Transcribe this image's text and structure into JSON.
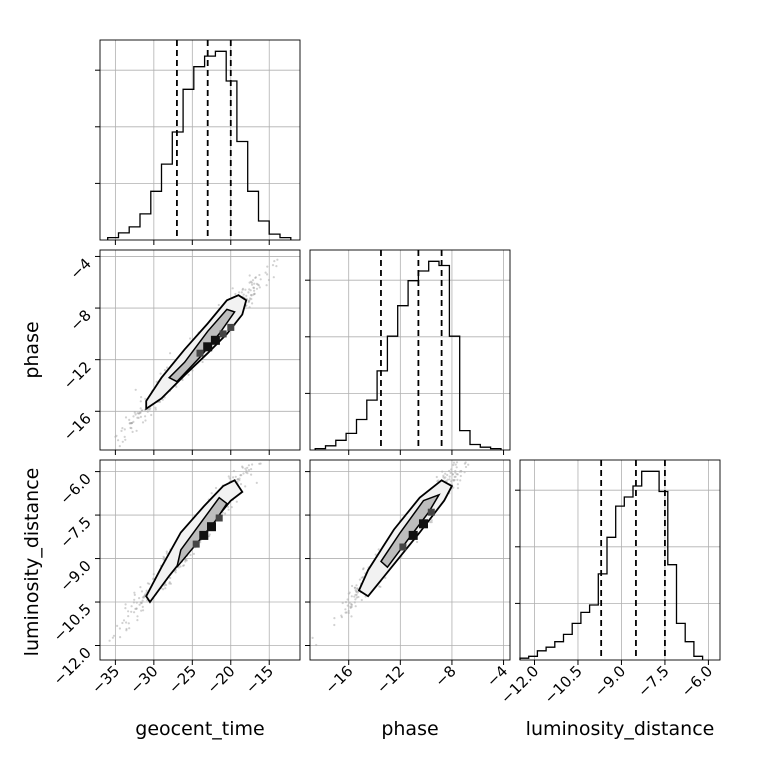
{
  "chart_data": {
    "type": "corner",
    "variables": [
      "geocent_time",
      "phase",
      "luminosity_distance"
    ],
    "axes": {
      "geocent_time": {
        "label": "geocent_time",
        "range": [
          -37,
          -11
        ],
        "ticks": [
          -35,
          -30,
          -25,
          -20,
          -15
        ],
        "tick_labels": [
          "−35",
          "−30",
          "−25",
          "−20",
          "−15"
        ]
      },
      "phase": {
        "label": "phase",
        "range": [
          -19,
          -3.5
        ],
        "ticks": [
          -16,
          -12,
          -8,
          -4
        ],
        "tick_labels": [
          "−16",
          "−12",
          "−8",
          "−4"
        ]
      },
      "luminosity_distance": {
        "label": "luminosity_distance",
        "range": [
          -12.5,
          -5.6
        ],
        "ticks": [
          -12.0,
          -10.5,
          -9.0,
          -7.5,
          -6.0
        ],
        "tick_labels": [
          "−12.0",
          "−10.5",
          "−9.0",
          "−7.5",
          "−6.0"
        ]
      }
    },
    "histograms": [
      {
        "variable": "geocent_time",
        "bin_edges": [
          -36,
          -34.6,
          -33.2,
          -31.8,
          -30.4,
          -29,
          -27.6,
          -26.2,
          -24.8,
          -23.4,
          -22,
          -20.6,
          -19.2,
          -17.8,
          -16.4,
          -15,
          -13.6,
          -12.2
        ],
        "counts": [
          2,
          6,
          11,
          22,
          41,
          64,
          91,
          127,
          146,
          155,
          159,
          134,
          83,
          41,
          16,
          5,
          2
        ],
        "quantiles": [
          -27.0,
          -23.0,
          -20.0
        ]
      },
      {
        "variable": "phase",
        "bin_edges": [
          -18.6,
          -17.8,
          -17.0,
          -16.2,
          -15.4,
          -14.6,
          -13.8,
          -13.0,
          -12.2,
          -11.4,
          -10.6,
          -9.8,
          -9.0,
          -8.2,
          -7.4,
          -6.6,
          -5.8,
          -5.0,
          -4.2
        ],
        "counts": [
          1,
          3,
          7,
          12,
          22,
          36,
          57,
          82,
          104,
          122,
          129,
          136,
          133,
          82,
          14,
          4,
          2,
          1
        ],
        "quantiles": [
          -13.5,
          -10.6,
          -8.8
        ]
      },
      {
        "variable": "luminosity_distance",
        "bin_edges": [
          -12.5,
          -12.2,
          -11.9,
          -11.6,
          -11.3,
          -11.0,
          -10.7,
          -10.4,
          -10.1,
          -9.8,
          -9.5,
          -9.2,
          -8.9,
          -8.6,
          -8.3,
          -8.0,
          -7.7,
          -7.4,
          -7.1,
          -6.8,
          -6.5,
          -6.2
        ],
        "counts": [
          1,
          2,
          5,
          7,
          10,
          14,
          20,
          26,
          30,
          47,
          67,
          84,
          89,
          95,
          103,
          103,
          92,
          52,
          20,
          10,
          2
        ],
        "quantiles": [
          -9.7,
          -8.5,
          -7.5
        ]
      }
    ],
    "contours": [
      {
        "x": "geocent_time",
        "y": "phase",
        "outer_contour": [
          [
            -31.0,
            -15.8
          ],
          [
            -29.0,
            -15.0
          ],
          [
            -26.0,
            -13.2
          ],
          [
            -23.0,
            -11.5
          ],
          [
            -20.5,
            -10.0
          ],
          [
            -18.5,
            -8.5
          ],
          [
            -18.0,
            -7.4
          ],
          [
            -19.0,
            -7.0
          ],
          [
            -20.5,
            -7.4
          ],
          [
            -23.0,
            -9.2
          ],
          [
            -26.0,
            -11.2
          ],
          [
            -29.0,
            -13.4
          ],
          [
            -31.0,
            -15.2
          ]
        ],
        "inner_contour": [
          [
            -27.0,
            -13.7
          ],
          [
            -24.0,
            -11.8
          ],
          [
            -21.5,
            -10.0
          ],
          [
            -19.5,
            -8.3
          ],
          [
            -20.5,
            -8.1
          ],
          [
            -23.0,
            -9.8
          ],
          [
            -26.0,
            -12.2
          ],
          [
            -28.0,
            -13.4
          ]
        ],
        "density_peaks": [
          [
            -23.0,
            -11.0
          ],
          [
            -22.0,
            -10.5
          ],
          [
            -21.0,
            -10.0
          ],
          [
            -24.0,
            -11.5
          ],
          [
            -20.0,
            -9.5
          ]
        ]
      },
      {
        "x": "geocent_time",
        "y": "luminosity_distance",
        "outer_contour": [
          [
            -30.5,
            -10.5
          ],
          [
            -28.0,
            -9.6
          ],
          [
            -25.0,
            -8.6
          ],
          [
            -22.5,
            -7.8
          ],
          [
            -20.0,
            -7.0
          ],
          [
            -18.5,
            -6.7
          ],
          [
            -19.5,
            -6.3
          ],
          [
            -21.0,
            -6.5
          ],
          [
            -23.5,
            -7.2
          ],
          [
            -26.5,
            -8.1
          ],
          [
            -29.0,
            -9.3
          ],
          [
            -31.0,
            -10.3
          ]
        ],
        "inner_contour": [
          [
            -27.0,
            -9.3
          ],
          [
            -24.5,
            -8.5
          ],
          [
            -22.0,
            -7.7
          ],
          [
            -20.5,
            -7.1
          ],
          [
            -21.5,
            -6.9
          ],
          [
            -24.0,
            -7.8
          ],
          [
            -26.5,
            -8.7
          ]
        ],
        "density_peaks": [
          [
            -23.5,
            -8.2
          ],
          [
            -22.5,
            -7.9
          ],
          [
            -21.5,
            -7.6
          ],
          [
            -24.5,
            -8.5
          ]
        ]
      },
      {
        "x": "phase",
        "y": "luminosity_distance",
        "outer_contour": [
          [
            -14.5,
            -10.3
          ],
          [
            -12.5,
            -9.2
          ],
          [
            -10.5,
            -8.1
          ],
          [
            -8.6,
            -7.0
          ],
          [
            -8.0,
            -6.5
          ],
          [
            -8.8,
            -6.3
          ],
          [
            -10.5,
            -6.9
          ],
          [
            -12.5,
            -8.0
          ],
          [
            -14.5,
            -9.4
          ],
          [
            -15.2,
            -10.1
          ]
        ],
        "inner_contour": [
          [
            -13.0,
            -9.3
          ],
          [
            -11.5,
            -8.4
          ],
          [
            -9.8,
            -7.4
          ],
          [
            -9.0,
            -6.8
          ],
          [
            -10.2,
            -7.0
          ],
          [
            -12.0,
            -8.1
          ],
          [
            -13.5,
            -9.1
          ]
        ],
        "density_peaks": [
          [
            -11.0,
            -8.2
          ],
          [
            -10.2,
            -7.8
          ],
          [
            -9.6,
            -7.4
          ],
          [
            -11.8,
            -8.6
          ]
        ]
      }
    ],
    "grid": true
  }
}
